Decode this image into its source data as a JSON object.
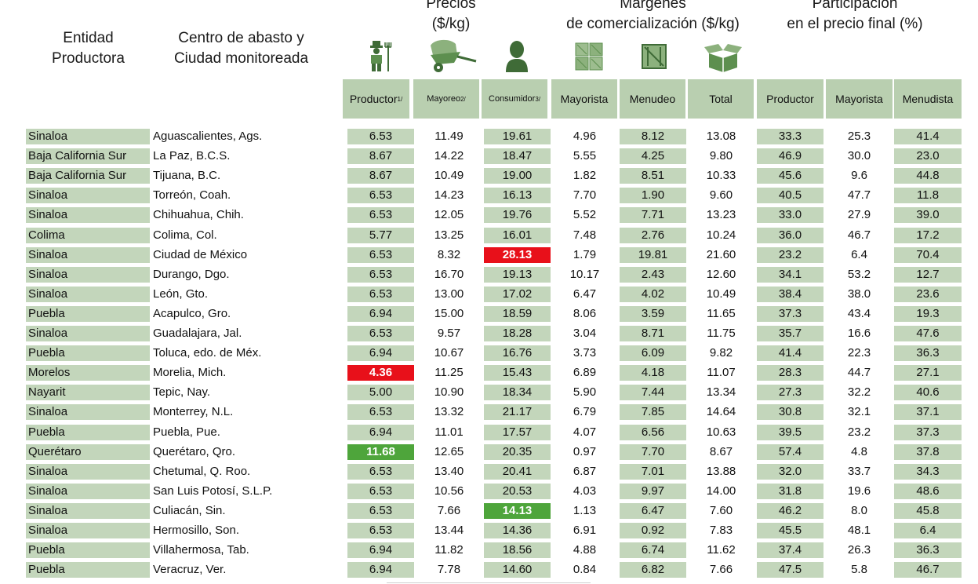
{
  "header": {
    "entidad": [
      "Entidad",
      "Productora"
    ],
    "centro": [
      "Centro de abasto y",
      "Ciudad monitoreada"
    ],
    "precios": [
      "Precios",
      "($/kg)"
    ],
    "margenes": [
      "Márgenes",
      "de comercialización ($/kg)"
    ],
    "participacion": [
      "Participación",
      "en el precio final (%)"
    ]
  },
  "icons": [
    "farmer-icon",
    "wheelbarrow-icon",
    "consumer-person-icon",
    "warehouse-crates-icon",
    "crate-icon",
    "open-box-icon"
  ],
  "columns": [
    {
      "label": "Productor",
      "sup": "1/"
    },
    {
      "label": "Mayoreo",
      "sup": "2/"
    },
    {
      "label": "Consumidor",
      "sup": "3/"
    },
    {
      "label": "Mayorista",
      "sup": ""
    },
    {
      "label": "Menudeo",
      "sup": ""
    },
    {
      "label": "Total",
      "sup": ""
    },
    {
      "label": "Productor",
      "sup": ""
    },
    {
      "label": "Mayorista",
      "sup": ""
    },
    {
      "label": "Menudista",
      "sup": ""
    }
  ],
  "highlight_colors": {
    "min": "#e8101a",
    "max": "#4ea53b",
    "shade": "#c3d6bb",
    "header": "#b9cfb0"
  },
  "rows": [
    {
      "entidad": "Sinaloa",
      "ciudad": "Aguascalientes, Ags.",
      "v": [
        "6.53",
        "11.49",
        "19.61",
        "4.96",
        "8.12",
        "13.08",
        "33.3",
        "25.3",
        "41.4"
      ]
    },
    {
      "entidad": "Baja California Sur",
      "ciudad": "La Paz, B.C.S.",
      "v": [
        "8.67",
        "14.22",
        "18.47",
        "5.55",
        "4.25",
        "9.80",
        "46.9",
        "30.0",
        "23.0"
      ]
    },
    {
      "entidad": "Baja California Sur",
      "ciudad": "Tijuana, B.C.",
      "v": [
        "8.67",
        "10.49",
        "19.00",
        "1.82",
        "8.51",
        "10.33",
        "45.6",
        "9.6",
        "44.8"
      ]
    },
    {
      "entidad": "Sinaloa",
      "ciudad": "Torreón, Coah.",
      "v": [
        "6.53",
        "14.23",
        "16.13",
        "7.70",
        "1.90",
        "9.60",
        "40.5",
        "47.7",
        "11.8"
      ]
    },
    {
      "entidad": "Sinaloa",
      "ciudad": "Chihuahua, Chih.",
      "v": [
        "6.53",
        "12.05",
        "19.76",
        "5.52",
        "7.71",
        "13.23",
        "33.0",
        "27.9",
        "39.0"
      ]
    },
    {
      "entidad": "Colima",
      "ciudad": "Colima, Col.",
      "v": [
        "5.77",
        "13.25",
        "16.01",
        "7.48",
        "2.76",
        "10.24",
        "36.0",
        "46.7",
        "17.2"
      ]
    },
    {
      "entidad": "Sinaloa",
      "ciudad": "Ciudad de México",
      "v": [
        "6.53",
        "8.32",
        "28.13",
        "1.79",
        "19.81",
        "21.60",
        "23.2",
        "6.4",
        "70.4"
      ],
      "hl": {
        "2": "red"
      }
    },
    {
      "entidad": "Sinaloa",
      "ciudad": "Durango, Dgo.",
      "v": [
        "6.53",
        "16.70",
        "19.13",
        "10.17",
        "2.43",
        "12.60",
        "34.1",
        "53.2",
        "12.7"
      ]
    },
    {
      "entidad": "Sinaloa",
      "ciudad": "León, Gto.",
      "v": [
        "6.53",
        "13.00",
        "17.02",
        "6.47",
        "4.02",
        "10.49",
        "38.4",
        "38.0",
        "23.6"
      ]
    },
    {
      "entidad": "Puebla",
      "ciudad": "Acapulco, Gro.",
      "v": [
        "6.94",
        "15.00",
        "18.59",
        "8.06",
        "3.59",
        "11.65",
        "37.3",
        "43.4",
        "19.3"
      ]
    },
    {
      "entidad": "Sinaloa",
      "ciudad": "Guadalajara, Jal.",
      "v": [
        "6.53",
        "9.57",
        "18.28",
        "3.04",
        "8.71",
        "11.75",
        "35.7",
        "16.6",
        "47.6"
      ]
    },
    {
      "entidad": "Puebla",
      "ciudad": "Toluca, edo. de Méx.",
      "v": [
        "6.94",
        "10.67",
        "16.76",
        "3.73",
        "6.09",
        "9.82",
        "41.4",
        "22.3",
        "36.3"
      ]
    },
    {
      "entidad": "Morelos",
      "ciudad": "Morelia, Mich.",
      "v": [
        "4.36",
        "11.25",
        "15.43",
        "6.89",
        "4.18",
        "11.07",
        "28.3",
        "44.7",
        "27.1"
      ],
      "hl": {
        "0": "red"
      }
    },
    {
      "entidad": "Nayarit",
      "ciudad": "Tepic, Nay.",
      "v": [
        "5.00",
        "10.90",
        "18.34",
        "5.90",
        "7.44",
        "13.34",
        "27.3",
        "32.2",
        "40.6"
      ]
    },
    {
      "entidad": "Sinaloa",
      "ciudad": "Monterrey, N.L.",
      "v": [
        "6.53",
        "13.32",
        "21.17",
        "6.79",
        "7.85",
        "14.64",
        "30.8",
        "32.1",
        "37.1"
      ]
    },
    {
      "entidad": "Puebla",
      "ciudad": "Puebla, Pue.",
      "v": [
        "6.94",
        "11.01",
        "17.57",
        "4.07",
        "6.56",
        "10.63",
        "39.5",
        "23.2",
        "37.3"
      ]
    },
    {
      "entidad": "Querétaro",
      "ciudad": "Querétaro, Qro.",
      "v": [
        "11.68",
        "12.65",
        "20.35",
        "0.97",
        "7.70",
        "8.67",
        "57.4",
        "4.8",
        "37.8"
      ],
      "hl": {
        "0": "green"
      }
    },
    {
      "entidad": "Sinaloa",
      "ciudad": "Chetumal, Q. Roo.",
      "v": [
        "6.53",
        "13.40",
        "20.41",
        "6.87",
        "7.01",
        "13.88",
        "32.0",
        "33.7",
        "34.3"
      ]
    },
    {
      "entidad": "Sinaloa",
      "ciudad": "San Luis Potosí, S.L.P.",
      "v": [
        "6.53",
        "10.56",
        "20.53",
        "4.03",
        "9.97",
        "14.00",
        "31.8",
        "19.6",
        "48.6"
      ]
    },
    {
      "entidad": "Sinaloa",
      "ciudad": "Culiacán, Sin.",
      "v": [
        "6.53",
        "7.66",
        "14.13",
        "1.13",
        "6.47",
        "7.60",
        "46.2",
        "8.0",
        "45.8"
      ],
      "hl": {
        "2": "green"
      }
    },
    {
      "entidad": "Sinaloa",
      "ciudad": "Hermosillo, Son.",
      "v": [
        "6.53",
        "13.44",
        "14.36",
        "6.91",
        "0.92",
        "7.83",
        "45.5",
        "48.1",
        "6.4"
      ]
    },
    {
      "entidad": "Puebla",
      "ciudad": "Villahermosa, Tab.",
      "v": [
        "6.94",
        "11.82",
        "18.56",
        "4.88",
        "6.74",
        "11.62",
        "37.4",
        "26.3",
        "36.3"
      ]
    },
    {
      "entidad": "Puebla",
      "ciudad": "Veracruz, Ver.",
      "v": [
        "6.94",
        "7.78",
        "14.60",
        "0.84",
        "6.82",
        "7.66",
        "47.5",
        "5.8",
        "46.7"
      ]
    }
  ]
}
